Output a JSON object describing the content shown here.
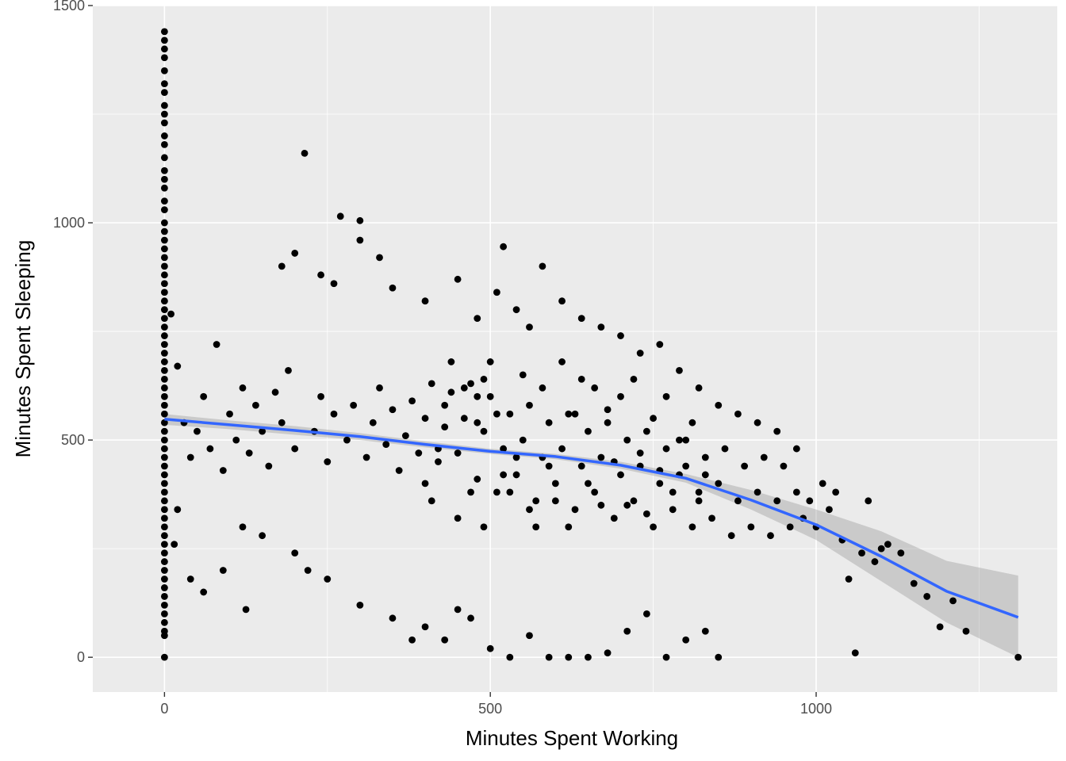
{
  "chart_data": {
    "type": "scatter",
    "title": "",
    "xlabel": "Minutes Spent Working",
    "ylabel": "Minutes Spent Sleeping",
    "xlim": [
      -110,
      1370
    ],
    "ylim": [
      -80,
      1500
    ],
    "x_ticks": [
      0,
      500,
      1000
    ],
    "x_tick_labels": [
      "0",
      "500",
      "1000"
    ],
    "y_ticks": [
      0,
      500,
      1000,
      1500
    ],
    "y_tick_labels": [
      "0",
      "500",
      "1000",
      "1500"
    ],
    "grid": true,
    "legend": "none",
    "colors": {
      "panel_background": "#ebebeb",
      "grid_major": "#ffffff",
      "points": "#000000",
      "smooth_line": "#3366ff",
      "confidence_band": "#999999"
    },
    "series": [
      {
        "kind": "points",
        "points": [
          [
            0,
            1440
          ],
          [
            0,
            1420
          ],
          [
            0,
            1400
          ],
          [
            0,
            1380
          ],
          [
            0,
            1350
          ],
          [
            0,
            1320
          ],
          [
            0,
            1300
          ],
          [
            0,
            1270
          ],
          [
            0,
            1250
          ],
          [
            0,
            1230
          ],
          [
            0,
            1200
          ],
          [
            0,
            1180
          ],
          [
            0,
            1150
          ],
          [
            0,
            1120
          ],
          [
            0,
            1100
          ],
          [
            0,
            1080
          ],
          [
            0,
            1050
          ],
          [
            0,
            1030
          ],
          [
            0,
            1000
          ],
          [
            0,
            980
          ],
          [
            0,
            960
          ],
          [
            0,
            940
          ],
          [
            0,
            920
          ],
          [
            0,
            900
          ],
          [
            0,
            880
          ],
          [
            0,
            860
          ],
          [
            0,
            840
          ],
          [
            0,
            820
          ],
          [
            0,
            800
          ],
          [
            0,
            780
          ],
          [
            0,
            760
          ],
          [
            0,
            740
          ],
          [
            0,
            720
          ],
          [
            0,
            700
          ],
          [
            0,
            680
          ],
          [
            0,
            660
          ],
          [
            0,
            640
          ],
          [
            0,
            620
          ],
          [
            0,
            600
          ],
          [
            0,
            580
          ],
          [
            0,
            560
          ],
          [
            0,
            540
          ],
          [
            0,
            520
          ],
          [
            0,
            500
          ],
          [
            0,
            480
          ],
          [
            0,
            460
          ],
          [
            0,
            440
          ],
          [
            0,
            420
          ],
          [
            0,
            400
          ],
          [
            0,
            380
          ],
          [
            0,
            360
          ],
          [
            0,
            340
          ],
          [
            0,
            320
          ],
          [
            0,
            300
          ],
          [
            0,
            280
          ],
          [
            0,
            260
          ],
          [
            0,
            240
          ],
          [
            0,
            220
          ],
          [
            0,
            200
          ],
          [
            0,
            180
          ],
          [
            0,
            160
          ],
          [
            0,
            140
          ],
          [
            0,
            120
          ],
          [
            0,
            100
          ],
          [
            0,
            80
          ],
          [
            0,
            60
          ],
          [
            0,
            50
          ],
          [
            0,
            0
          ],
          [
            10,
            790
          ],
          [
            20,
            670
          ],
          [
            30,
            540
          ],
          [
            40,
            460
          ],
          [
            50,
            520
          ],
          [
            60,
            600
          ],
          [
            70,
            480
          ],
          [
            80,
            720
          ],
          [
            90,
            430
          ],
          [
            100,
            560
          ],
          [
            110,
            500
          ],
          [
            120,
            620
          ],
          [
            125,
            110
          ],
          [
            130,
            470
          ],
          [
            140,
            580
          ],
          [
            150,
            520
          ],
          [
            160,
            440
          ],
          [
            170,
            610
          ],
          [
            180,
            540
          ],
          [
            190,
            660
          ],
          [
            200,
            480
          ],
          [
            215,
            1160
          ],
          [
            230,
            520
          ],
          [
            240,
            600
          ],
          [
            250,
            450
          ],
          [
            260,
            560
          ],
          [
            270,
            1015
          ],
          [
            280,
            500
          ],
          [
            290,
            580
          ],
          [
            300,
            1005
          ],
          [
            310,
            460
          ],
          [
            320,
            540
          ],
          [
            330,
            620
          ],
          [
            340,
            490
          ],
          [
            350,
            570
          ],
          [
            360,
            430
          ],
          [
            370,
            510
          ],
          [
            380,
            590
          ],
          [
            390,
            470
          ],
          [
            400,
            550
          ],
          [
            410,
            630
          ],
          [
            420,
            450
          ],
          [
            430,
            530
          ],
          [
            440,
            610
          ],
          [
            450,
            470
          ],
          [
            460,
            550
          ],
          [
            470,
            630
          ],
          [
            480,
            410
          ],
          [
            490,
            520
          ],
          [
            500,
            600
          ],
          [
            510,
            380
          ],
          [
            520,
            480
          ],
          [
            530,
            560
          ],
          [
            540,
            420
          ],
          [
            550,
            500
          ],
          [
            560,
            580
          ],
          [
            570,
            360
          ],
          [
            580,
            460
          ],
          [
            590,
            540
          ],
          [
            600,
            400
          ],
          [
            610,
            480
          ],
          [
            620,
            560
          ],
          [
            630,
            340
          ],
          [
            640,
            440
          ],
          [
            650,
            520
          ],
          [
            660,
            380
          ],
          [
            670,
            460
          ],
          [
            680,
            540
          ],
          [
            690,
            320
          ],
          [
            700,
            420
          ],
          [
            710,
            500
          ],
          [
            720,
            360
          ],
          [
            730,
            440
          ],
          [
            740,
            520
          ],
          [
            750,
            300
          ],
          [
            760,
            400
          ],
          [
            770,
            480
          ],
          [
            780,
            340
          ],
          [
            790,
            420
          ],
          [
            800,
            500
          ],
          [
            810,
            300
          ],
          [
            820,
            380
          ],
          [
            830,
            460
          ],
          [
            840,
            320
          ],
          [
            850,
            400
          ],
          [
            860,
            480
          ],
          [
            870,
            280
          ],
          [
            880,
            360
          ],
          [
            890,
            440
          ],
          [
            900,
            300
          ],
          [
            910,
            380
          ],
          [
            920,
            460
          ],
          [
            930,
            280
          ],
          [
            940,
            360
          ],
          [
            950,
            440
          ],
          [
            960,
            300
          ],
          [
            970,
            380
          ],
          [
            980,
            320
          ],
          [
            990,
            360
          ],
          [
            1000,
            300
          ],
          [
            1010,
            400
          ],
          [
            1020,
            340
          ],
          [
            1030,
            380
          ],
          [
            1040,
            270
          ],
          [
            1050,
            180
          ],
          [
            1060,
            10
          ],
          [
            1070,
            240
          ],
          [
            1080,
            360
          ],
          [
            1090,
            220
          ],
          [
            1100,
            250
          ],
          [
            1110,
            260
          ],
          [
            1130,
            240
          ],
          [
            1150,
            170
          ],
          [
            1170,
            140
          ],
          [
            1190,
            70
          ],
          [
            1210,
            130
          ],
          [
            1230,
            60
          ],
          [
            1310,
            0
          ],
          [
            520,
            945
          ],
          [
            300,
            960
          ],
          [
            330,
            920
          ],
          [
            200,
            930
          ],
          [
            180,
            900
          ],
          [
            240,
            880
          ],
          [
            260,
            860
          ],
          [
            350,
            850
          ],
          [
            400,
            820
          ],
          [
            450,
            870
          ],
          [
            480,
            780
          ],
          [
            510,
            840
          ],
          [
            540,
            800
          ],
          [
            560,
            760
          ],
          [
            580,
            900
          ],
          [
            610,
            820
          ],
          [
            640,
            780
          ],
          [
            670,
            760
          ],
          [
            700,
            740
          ],
          [
            730,
            700
          ],
          [
            760,
            720
          ],
          [
            790,
            660
          ],
          [
            820,
            620
          ],
          [
            850,
            580
          ],
          [
            880,
            560
          ],
          [
            910,
            540
          ],
          [
            940,
            520
          ],
          [
            970,
            480
          ],
          [
            450,
            110
          ],
          [
            400,
            70
          ],
          [
            430,
            40
          ],
          [
            470,
            90
          ],
          [
            500,
            20
          ],
          [
            530,
            0
          ],
          [
            560,
            50
          ],
          [
            590,
            0
          ],
          [
            620,
            0
          ],
          [
            650,
            0
          ],
          [
            680,
            10
          ],
          [
            710,
            60
          ],
          [
            740,
            100
          ],
          [
            770,
            0
          ],
          [
            800,
            40
          ],
          [
            830,
            60
          ],
          [
            850,
            0
          ],
          [
            300,
            120
          ],
          [
            350,
            90
          ],
          [
            380,
            40
          ],
          [
            250,
            180
          ],
          [
            220,
            200
          ],
          [
            200,
            240
          ],
          [
            150,
            280
          ],
          [
            120,
            300
          ],
          [
            90,
            200
          ],
          [
            60,
            150
          ],
          [
            40,
            180
          ],
          [
            20,
            340
          ],
          [
            15,
            260
          ],
          [
            480,
            600
          ],
          [
            490,
            640
          ],
          [
            500,
            680
          ],
          [
            510,
            560
          ],
          [
            520,
            420
          ],
          [
            530,
            380
          ],
          [
            540,
            460
          ],
          [
            550,
            650
          ],
          [
            560,
            340
          ],
          [
            570,
            300
          ],
          [
            580,
            620
          ],
          [
            590,
            440
          ],
          [
            600,
            360
          ],
          [
            610,
            680
          ],
          [
            620,
            300
          ],
          [
            630,
            560
          ],
          [
            640,
            640
          ],
          [
            650,
            400
          ],
          [
            660,
            620
          ],
          [
            670,
            350
          ],
          [
            680,
            570
          ],
          [
            690,
            450
          ],
          [
            700,
            600
          ],
          [
            710,
            350
          ],
          [
            720,
            640
          ],
          [
            730,
            470
          ],
          [
            740,
            330
          ],
          [
            750,
            550
          ],
          [
            760,
            430
          ],
          [
            770,
            600
          ],
          [
            780,
            380
          ],
          [
            790,
            500
          ],
          [
            800,
            440
          ],
          [
            810,
            540
          ],
          [
            820,
            360
          ],
          [
            830,
            420
          ],
          [
            400,
            400
          ],
          [
            410,
            360
          ],
          [
            420,
            480
          ],
          [
            430,
            580
          ],
          [
            440,
            680
          ],
          [
            450,
            320
          ],
          [
            460,
            620
          ],
          [
            470,
            380
          ],
          [
            480,
            540
          ],
          [
            490,
            300
          ]
        ]
      },
      {
        "kind": "smooth",
        "name": "",
        "x": [
          0,
          100,
          200,
          300,
          400,
          500,
          600,
          700,
          800,
          900,
          1000,
          1100,
          1200,
          1310
        ],
        "y": [
          548,
          535,
          522,
          508,
          490,
          474,
          462,
          442,
          412,
          362,
          305,
          232,
          152,
          92
        ],
        "ci_lower": [
          535,
          525,
          512,
          500,
          483,
          468,
          456,
          434,
          402,
          340,
          270,
          175,
          80,
          0
        ],
        "ci_upper": [
          560,
          545,
          532,
          516,
          497,
          480,
          468,
          450,
          422,
          385,
          340,
          290,
          222,
          188
        ]
      }
    ]
  }
}
